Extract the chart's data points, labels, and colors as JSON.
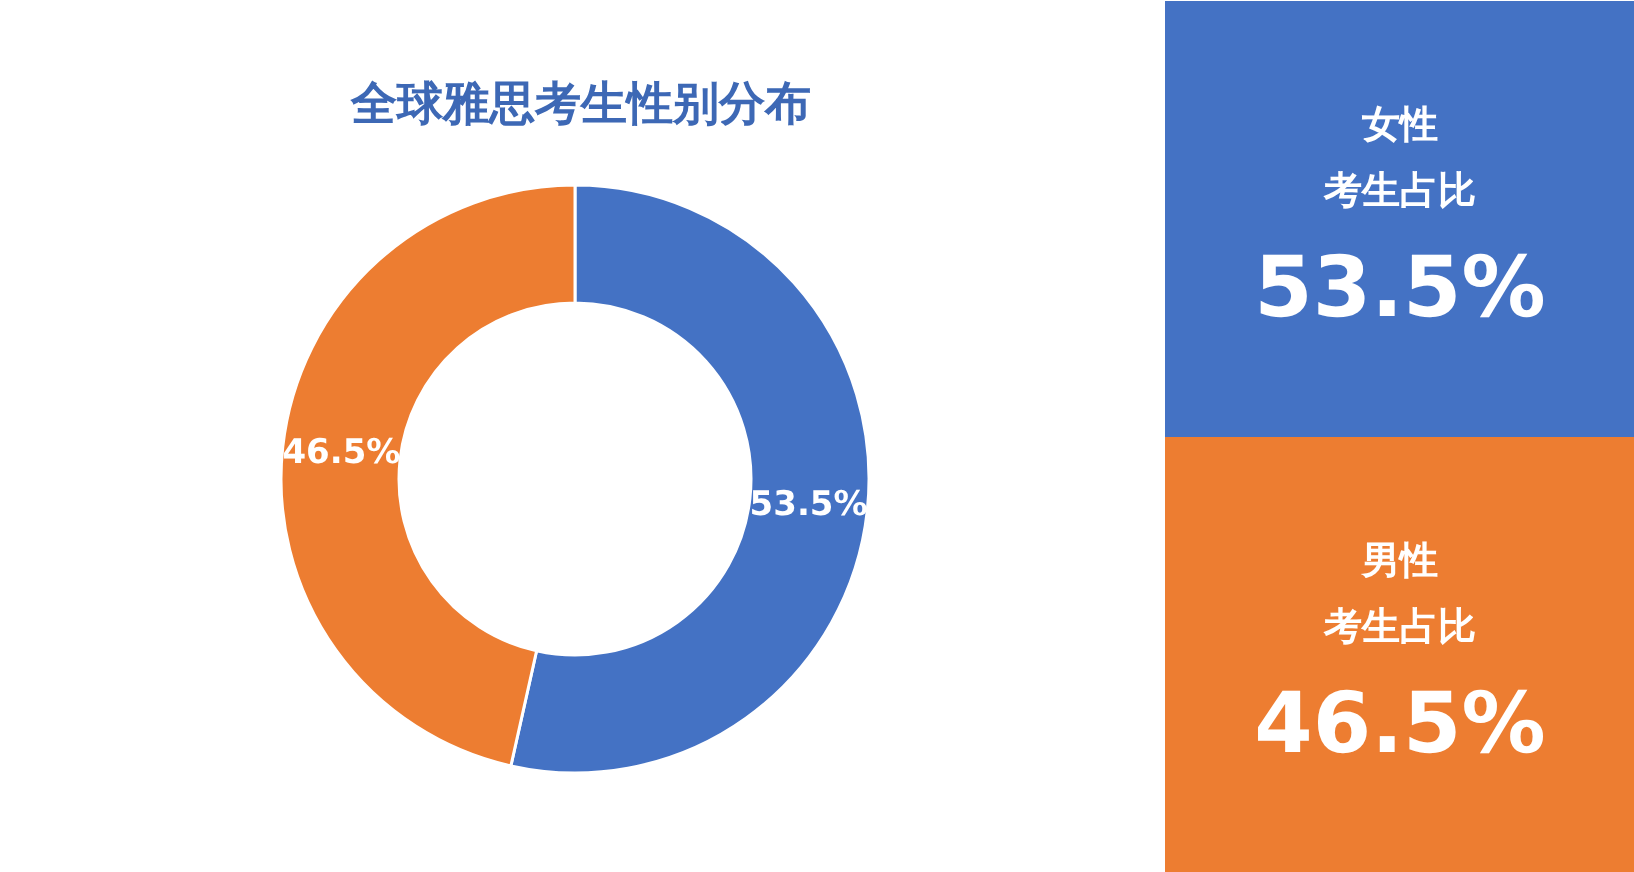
{
  "chart_data": [
    {
      "type": "donut",
      "title": "全球雅思考生性别分布",
      "categories": [
        null,
        null
      ],
      "values": [
        53.5,
        46.5
      ],
      "colors": [
        "#4472c4",
        "#ed7d31"
      ],
      "value_labels": [
        "53.5%",
        "46.5%"
      ]
    },
    {
      "type": "other",
      "categories": [
        "女性",
        "男性"
      ],
      "annotations": [
        "考生占比",
        "考生占比"
      ],
      "value_labels": [
        "53.5%",
        "46.5%"
      ],
      "colors": [
        "#4472c4",
        "#ed7d31"
      ]
    }
  ]
}
